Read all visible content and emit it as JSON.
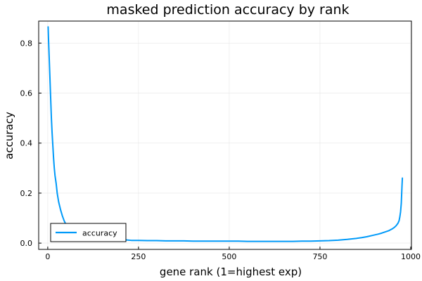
{
  "chart_data": {
    "type": "line",
    "title": "masked prediction accuracy by rank",
    "xlabel": "gene rank (1=highest exp)",
    "ylabel": "accuracy",
    "xlim": [
      -25,
      1002
    ],
    "ylim": [
      -0.025,
      0.888
    ],
    "xticks": [
      0,
      250,
      500,
      750,
      1000
    ],
    "xtick_labels": [
      "0",
      "250",
      "500",
      "750",
      "1000"
    ],
    "yticks": [
      0.0,
      0.2,
      0.4,
      0.6,
      0.8
    ],
    "ytick_labels": [
      "0.0",
      "0.2",
      "0.4",
      "0.6",
      "0.8"
    ],
    "grid": true,
    "legend_position": "bottom-left",
    "series": [
      {
        "name": "accuracy",
        "color": "#009af9",
        "x": [
          1,
          2,
          3,
          4,
          5,
          6,
          7,
          8,
          10,
          12,
          14,
          16,
          18,
          20,
          23,
          26,
          30,
          35,
          40,
          45,
          50,
          55,
          60,
          70,
          80,
          90,
          100,
          110,
          125,
          140,
          160,
          180,
          200,
          215,
          230,
          250,
          275,
          300,
          325,
          350,
          375,
          400,
          425,
          450,
          475,
          500,
          525,
          550,
          575,
          600,
          625,
          650,
          675,
          700,
          725,
          750,
          775,
          800,
          825,
          850,
          865,
          880,
          895,
          910,
          920,
          930,
          940,
          950,
          955,
          960,
          965,
          968,
          970,
          972,
          974,
          975,
          976,
          977
        ],
        "values": [
          0.865,
          0.82,
          0.78,
          0.74,
          0.7,
          0.66,
          0.62,
          0.58,
          0.5,
          0.44,
          0.39,
          0.34,
          0.3,
          0.27,
          0.24,
          0.2,
          0.165,
          0.135,
          0.11,
          0.09,
          0.075,
          0.062,
          0.053,
          0.04,
          0.032,
          0.026,
          0.022,
          0.019,
          0.016,
          0.014,
          0.013,
          0.012,
          0.012,
          0.013,
          0.011,
          0.011,
          0.01,
          0.01,
          0.009,
          0.009,
          0.009,
          0.008,
          0.008,
          0.008,
          0.008,
          0.008,
          0.008,
          0.007,
          0.007,
          0.007,
          0.007,
          0.007,
          0.007,
          0.008,
          0.008,
          0.009,
          0.01,
          0.012,
          0.015,
          0.019,
          0.022,
          0.026,
          0.031,
          0.036,
          0.04,
          0.045,
          0.05,
          0.058,
          0.063,
          0.07,
          0.08,
          0.09,
          0.105,
          0.125,
          0.16,
          0.195,
          0.23,
          0.26
        ]
      }
    ]
  }
}
